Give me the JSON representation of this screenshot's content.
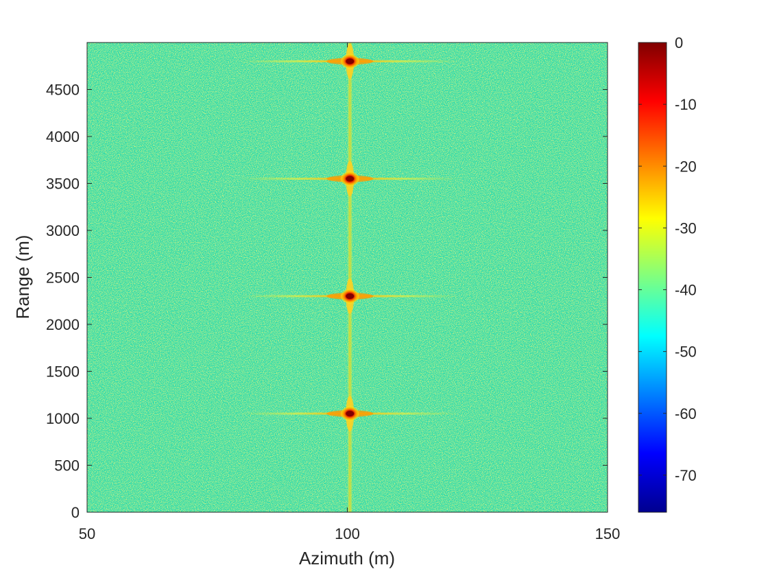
{
  "chart_data": {
    "type": "heatmap",
    "title": "",
    "xlabel": "Azimuth (m)",
    "ylabel": "Range (m)",
    "xlim": [
      50,
      150
    ],
    "ylim": [
      0,
      5000
    ],
    "xticks": [
      50,
      100,
      150
    ],
    "yticks": [
      0,
      500,
      1000,
      1500,
      2000,
      2500,
      3000,
      3500,
      4000,
      4500
    ],
    "colormap": "jet",
    "colorbar": {
      "range": [
        -76,
        0
      ],
      "ticks": [
        0,
        -10,
        -20,
        -30,
        -40,
        -50,
        -60,
        -70
      ]
    },
    "background_level_db": -42,
    "point_targets": [
      {
        "azimuth": 100.5,
        "range": 1050,
        "peak_db": 0
      },
      {
        "azimuth": 100.5,
        "range": 2300,
        "peak_db": 0
      },
      {
        "azimuth": 100.5,
        "range": 3550,
        "peak_db": 0
      },
      {
        "azimuth": 100.5,
        "range": 4800,
        "peak_db": 0
      }
    ],
    "grid": false,
    "colors": {
      "background": "#36dcaa",
      "cross_sidelobe": "#d8e83a",
      "target_core": "#8b0000",
      "axis": "#262626"
    }
  }
}
